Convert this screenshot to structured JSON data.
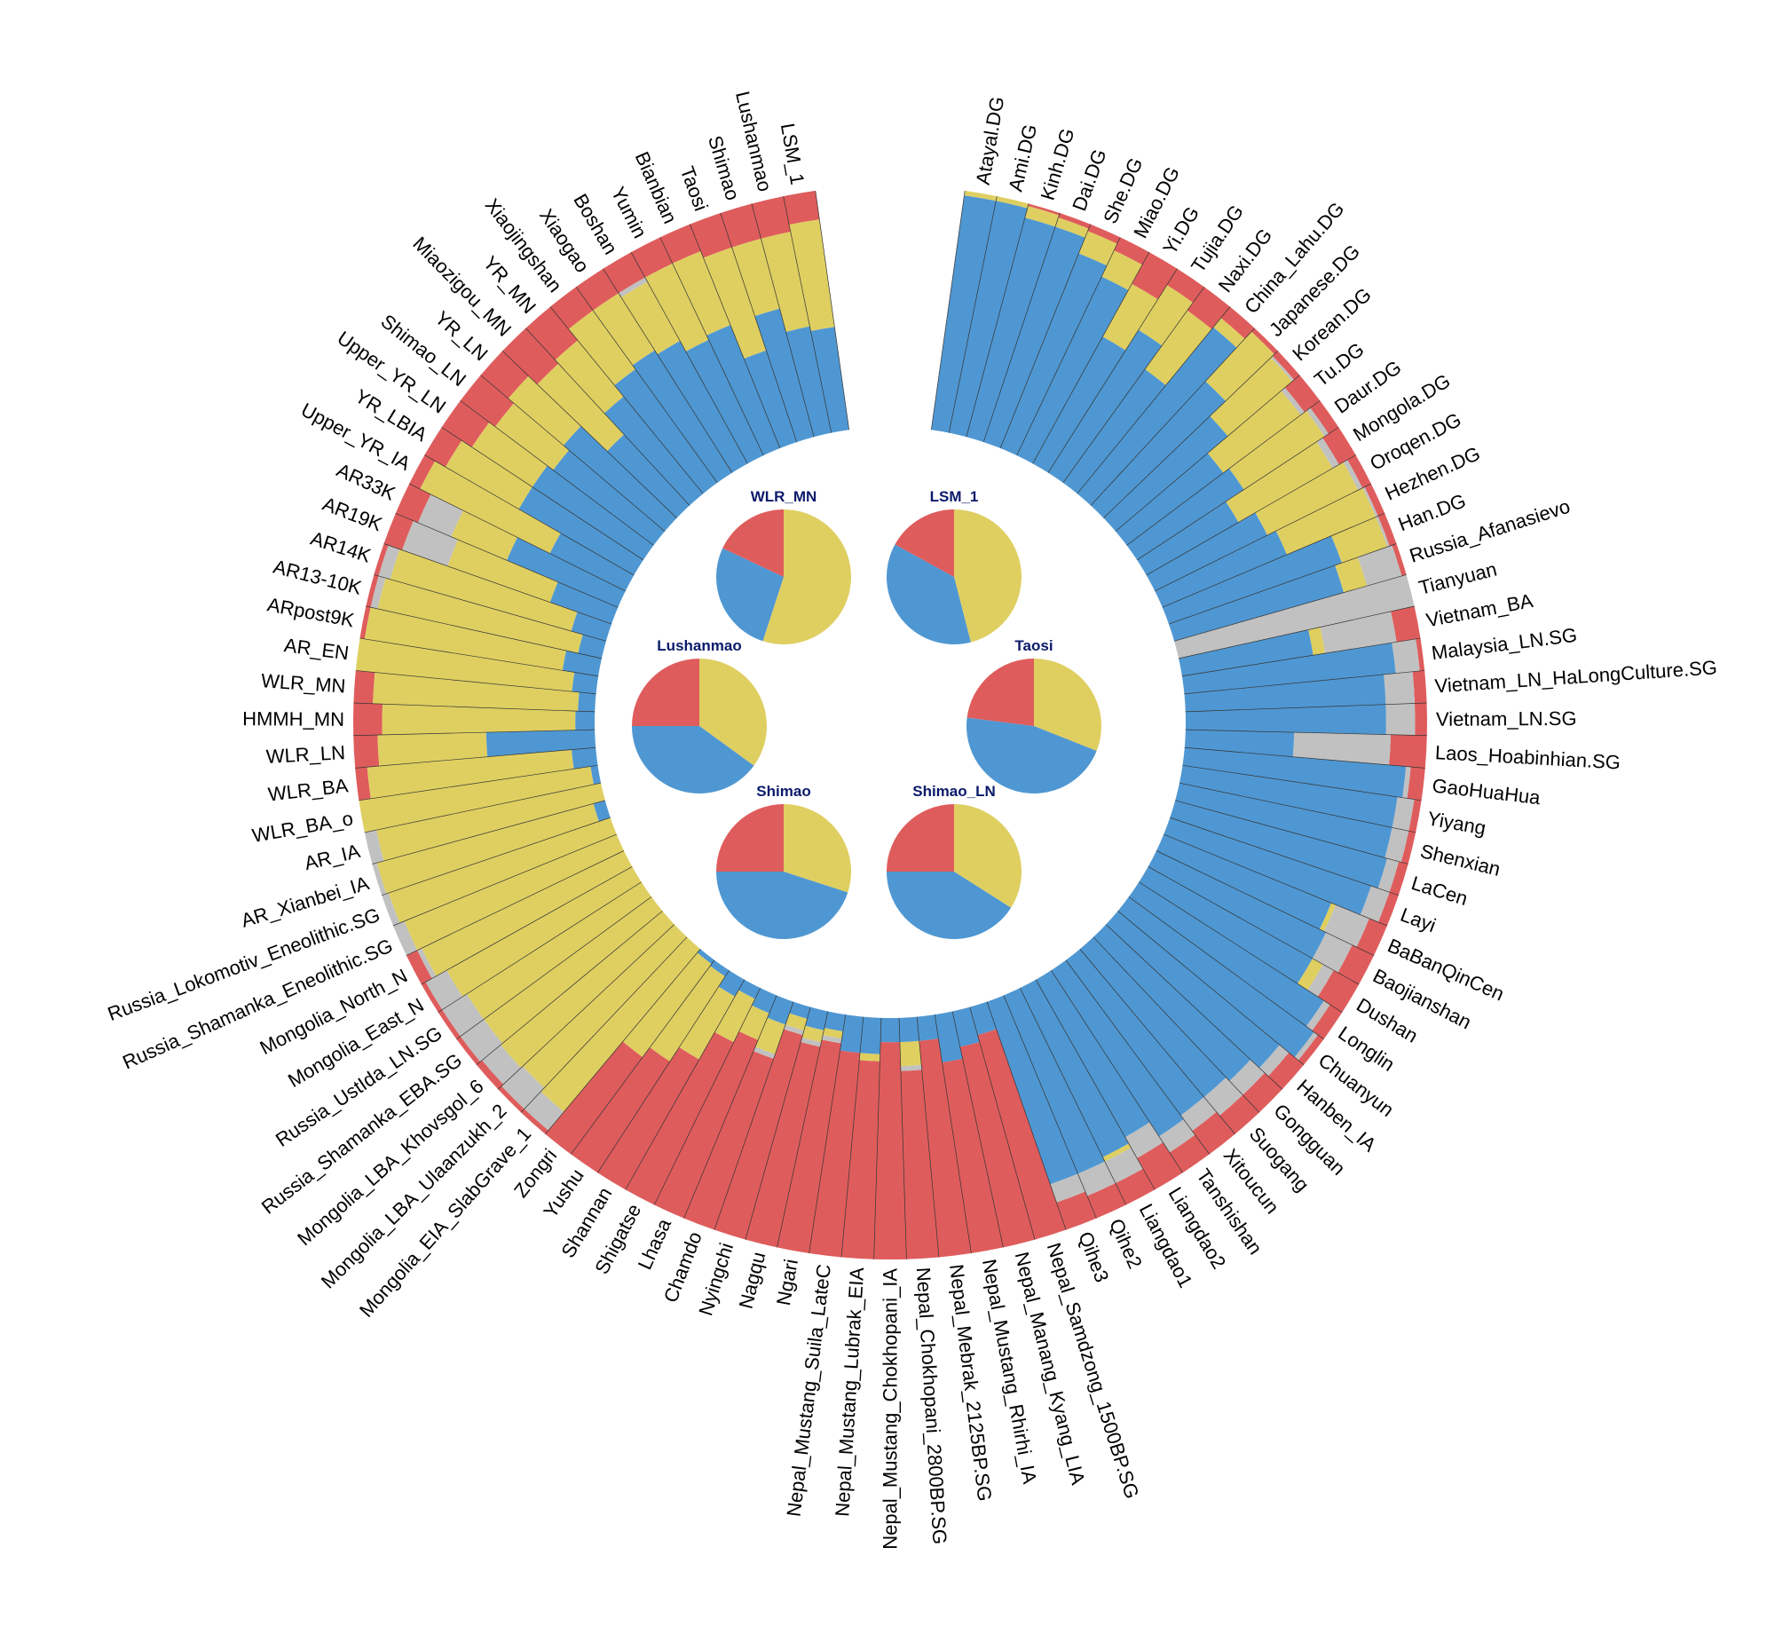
{
  "chart_data": [
    {
      "type": "circular-stacked-bar",
      "title": "",
      "legend": "none",
      "grid": false,
      "component_order": [
        "red",
        "gray",
        "yellow",
        "blue"
      ],
      "colors": {
        "red": "#df5c5c",
        "yellow": "#dfcf61",
        "blue": "#4f97d2",
        "gray": "#c1c1c1"
      },
      "groups": [
        {
          "label": "Atayal.DG",
          "red": 0.0,
          "gray": 0.0,
          "yellow": 0.02,
          "blue": 0.98
        },
        {
          "label": "Ami.DG",
          "red": 0.0,
          "gray": 0.0,
          "yellow": 0.02,
          "blue": 0.98
        },
        {
          "label": "Kinh.DG",
          "red": 0.01,
          "gray": 0.0,
          "yellow": 0.05,
          "blue": 0.94
        },
        {
          "label": "Dai.DG",
          "red": 0.02,
          "gray": 0.0,
          "yellow": 0.04,
          "blue": 0.94
        },
        {
          "label": "She.DG",
          "red": 0.03,
          "gray": 0.0,
          "yellow": 0.1,
          "blue": 0.87
        },
        {
          "label": "Miao.DG",
          "red": 0.06,
          "gray": 0.0,
          "yellow": 0.12,
          "blue": 0.82
        },
        {
          "label": "Yi.DG",
          "red": 0.15,
          "gray": 0.0,
          "yellow": 0.25,
          "blue": 0.6
        },
        {
          "label": "Tujia.DG",
          "red": 0.08,
          "gray": 0.0,
          "yellow": 0.22,
          "blue": 0.7
        },
        {
          "label": "Naxi.DG",
          "red": 0.12,
          "gray": 0.0,
          "yellow": 0.3,
          "blue": 0.58
        },
        {
          "label": "China_Lahu.DG",
          "red": 0.06,
          "gray": 0.0,
          "yellow": 0.05,
          "blue": 0.89
        },
        {
          "label": "Japanese.DG",
          "red": 0.02,
          "gray": 0.0,
          "yellow": 0.28,
          "blue": 0.7
        },
        {
          "label": "Korean.DG",
          "red": 0.03,
          "gray": 0.01,
          "yellow": 0.35,
          "blue": 0.61
        },
        {
          "label": "Tu.DG",
          "red": 0.08,
          "gray": 0.02,
          "yellow": 0.4,
          "blue": 0.5
        },
        {
          "label": "Daur.DG",
          "red": 0.05,
          "gray": 0.02,
          "yellow": 0.4,
          "blue": 0.53
        },
        {
          "label": "Mongola.DG",
          "red": 0.08,
          "gray": 0.03,
          "yellow": 0.45,
          "blue": 0.44
        },
        {
          "label": "Oroqen.DG",
          "red": 0.04,
          "gray": 0.02,
          "yellow": 0.42,
          "blue": 0.52
        },
        {
          "label": "Hezhen.DG",
          "red": 0.03,
          "gray": 0.01,
          "yellow": 0.4,
          "blue": 0.56
        },
        {
          "label": "Han.DG",
          "red": 0.03,
          "gray": 0.01,
          "yellow": 0.2,
          "blue": 0.76
        },
        {
          "label": "Russia_Afanasievo",
          "red": 0.02,
          "gray": 0.15,
          "yellow": 0.1,
          "blue": 0.73
        },
        {
          "label": "Tianyuan",
          "red": 0.0,
          "gray": 1.0,
          "yellow": 0.0,
          "blue": 0.0
        },
        {
          "label": "Vietnam_BA",
          "red": 0.1,
          "gray": 0.3,
          "yellow": 0.05,
          "blue": 0.55
        },
        {
          "label": "Malaysia_LN.SG",
          "red": 0.02,
          "gray": 0.1,
          "yellow": 0.0,
          "blue": 0.88
        },
        {
          "label": "Vietnam_LN_HaLongCulture.SG",
          "red": 0.05,
          "gray": 0.12,
          "yellow": 0.0,
          "blue": 0.83
        },
        {
          "label": "Vietnam_LN.SG",
          "red": 0.05,
          "gray": 0.12,
          "yellow": 0.0,
          "blue": 0.83
        },
        {
          "label": "Laos_Hoabinhian.SG",
          "red": 0.15,
          "gray": 0.4,
          "yellow": 0.0,
          "blue": 0.45
        },
        {
          "label": "GaoHuaHua",
          "red": 0.06,
          "gray": 0.02,
          "yellow": 0.0,
          "blue": 0.92
        },
        {
          "label": "Yiyang",
          "red": 0.03,
          "gray": 0.07,
          "yellow": 0.0,
          "blue": 0.9
        },
        {
          "label": "Shenxian",
          "red": 0.03,
          "gray": 0.07,
          "yellow": 0.0,
          "blue": 0.9
        },
        {
          "label": "LaCen",
          "red": 0.04,
          "gray": 0.05,
          "yellow": 0.0,
          "blue": 0.91
        },
        {
          "label": "Layi",
          "red": 0.04,
          "gray": 0.08,
          "yellow": 0.0,
          "blue": 0.88
        },
        {
          "label": "BaBanQinCen",
          "red": 0.08,
          "gray": 0.15,
          "yellow": 0.02,
          "blue": 0.75
        },
        {
          "label": "Baojianshan",
          "red": 0.1,
          "gray": 0.12,
          "yellow": 0.0,
          "blue": 0.78
        },
        {
          "label": "Dushan",
          "red": 0.12,
          "gray": 0.05,
          "yellow": 0.05,
          "blue": 0.78
        },
        {
          "label": "Longlin",
          "red": 0.06,
          "gray": 0.03,
          "yellow": 0.0,
          "blue": 0.91
        },
        {
          "label": "Chuanyun",
          "red": 0.03,
          "gray": 0.02,
          "yellow": 0.0,
          "blue": 0.95
        },
        {
          "label": "Hanben_IA",
          "red": 0.08,
          "gray": 0.05,
          "yellow": 0.0,
          "blue": 0.87
        },
        {
          "label": "Gongguan",
          "red": 0.1,
          "gray": 0.08,
          "yellow": 0.0,
          "blue": 0.82
        },
        {
          "label": "Suogang",
          "red": 0.1,
          "gray": 0.1,
          "yellow": 0.0,
          "blue": 0.8
        },
        {
          "label": "Xitoucun",
          "red": 0.12,
          "gray": 0.08,
          "yellow": 0.0,
          "blue": 0.8
        },
        {
          "label": "Tanshishan",
          "red": 0.1,
          "gray": 0.08,
          "yellow": 0.0,
          "blue": 0.82
        },
        {
          "label": "Liangdao2",
          "red": 0.15,
          "gray": 0.1,
          "yellow": 0.0,
          "blue": 0.75
        },
        {
          "label": "Liangdao1",
          "red": 0.1,
          "gray": 0.1,
          "yellow": 0.02,
          "blue": 0.78
        },
        {
          "label": "Qihe2",
          "red": 0.1,
          "gray": 0.1,
          "yellow": 0.0,
          "blue": 0.8
        },
        {
          "label": "Qihe3",
          "red": 0.12,
          "gray": 0.08,
          "yellow": 0.0,
          "blue": 0.8
        },
        {
          "label": "Nepal_Samdzong_1500BP.SG",
          "red": 0.88,
          "gray": 0.0,
          "yellow": 0.0,
          "blue": 0.12
        },
        {
          "label": "Nepal_Manang_Kyang_LIA",
          "red": 0.85,
          "gray": 0.0,
          "yellow": 0.0,
          "blue": 0.15
        },
        {
          "label": "Nepal_Mustang_Rhirhi_IA",
          "red": 0.8,
          "gray": 0.0,
          "yellow": 0.0,
          "blue": 0.2
        },
        {
          "label": "Nepal_Mebrak_2125BP.SG",
          "red": 0.9,
          "gray": 0.0,
          "yellow": 0.0,
          "blue": 0.1
        },
        {
          "label": "Nepal_Chokhopani_2800BP.SG",
          "red": 0.78,
          "gray": 0.02,
          "yellow": 0.1,
          "blue": 0.1
        },
        {
          "label": "Nepal_Mustang_Chokhopani_IA",
          "red": 0.9,
          "gray": 0.0,
          "yellow": 0.0,
          "blue": 0.1
        },
        {
          "label": "Nepal_Mustang_Lubrak_EIA",
          "red": 0.82,
          "gray": 0.0,
          "yellow": 0.03,
          "blue": 0.15
        },
        {
          "label": "Nepal_Mustang_Suila_LateC",
          "red": 0.85,
          "gray": 0.0,
          "yellow": 0.0,
          "blue": 0.15
        },
        {
          "label": "Ngari",
          "red": 0.88,
          "gray": 0.02,
          "yellow": 0.03,
          "blue": 0.07
        },
        {
          "label": "Nagqu",
          "red": 0.85,
          "gray": 0.02,
          "yellow": 0.05,
          "blue": 0.08
        },
        {
          "label": "Nyingchi",
          "red": 0.88,
          "gray": 0.02,
          "yellow": 0.05,
          "blue": 0.05
        },
        {
          "label": "Chamdo",
          "red": 0.75,
          "gray": 0.02,
          "yellow": 0.13,
          "blue": 0.1
        },
        {
          "label": "Lhasa",
          "red": 0.8,
          "gray": 0.0,
          "yellow": 0.12,
          "blue": 0.08
        },
        {
          "label": "Shigatse",
          "red": 0.75,
          "gray": 0.0,
          "yellow": 0.2,
          "blue": 0.05
        },
        {
          "label": "Shannan",
          "red": 0.62,
          "gray": 0.0,
          "yellow": 0.3,
          "blue": 0.08
        },
        {
          "label": "Yushu",
          "red": 0.55,
          "gray": 0.0,
          "yellow": 0.42,
          "blue": 0.03
        },
        {
          "label": "Zongri",
          "red": 0.5,
          "gray": 0.0,
          "yellow": 0.48,
          "blue": 0.02
        },
        {
          "label": "Mongolia_EIA_SlabGrave_1",
          "red": 0.02,
          "gray": 0.1,
          "yellow": 0.88,
          "blue": 0.0
        },
        {
          "label": "Mongolia_LBA_Ulaanzukh_2",
          "red": 0.02,
          "gray": 0.12,
          "yellow": 0.86,
          "blue": 0.0
        },
        {
          "label": "Mongolia_LBA_Khovsgol_6",
          "red": 0.03,
          "gray": 0.1,
          "yellow": 0.87,
          "blue": 0.0
        },
        {
          "label": "Russia_Shamanka_EBA.SG",
          "red": 0.02,
          "gray": 0.12,
          "yellow": 0.86,
          "blue": 0.0
        },
        {
          "label": "Russia_UstIda_LN.SG",
          "red": 0.02,
          "gray": 0.12,
          "yellow": 0.86,
          "blue": 0.0
        },
        {
          "label": "Mongolia_East_N",
          "red": 0.02,
          "gray": 0.1,
          "yellow": 0.88,
          "blue": 0.0
        },
        {
          "label": "Mongolia_North_N",
          "red": 0.05,
          "gray": 0.02,
          "yellow": 0.93,
          "blue": 0.0
        },
        {
          "label": "Russia_Shamanka_Eneolithic.SG",
          "red": 0.0,
          "gray": 0.05,
          "yellow": 0.95,
          "blue": 0.0
        },
        {
          "label": "Russia_Lokomotiv_Eneolithic.SG",
          "red": 0.0,
          "gray": 0.03,
          "yellow": 0.97,
          "blue": 0.0
        },
        {
          "label": "AR_Xianbei_IA",
          "red": 0.0,
          "gray": 0.02,
          "yellow": 0.93,
          "blue": 0.05
        },
        {
          "label": "AR_IA",
          "red": 0.0,
          "gray": 0.05,
          "yellow": 0.95,
          "blue": 0.0
        },
        {
          "label": "WLR_BA_o",
          "red": 0.0,
          "gray": 0.0,
          "yellow": 0.97,
          "blue": 0.03
        },
        {
          "label": "WLR_BA",
          "red": 0.05,
          "gray": 0.0,
          "yellow": 0.85,
          "blue": 0.1
        },
        {
          "label": "WLR_LN",
          "red": 0.1,
          "gray": 0.0,
          "yellow": 0.45,
          "blue": 0.45
        },
        {
          "label": "HMMH_MN",
          "red": 0.12,
          "gray": 0.0,
          "yellow": 0.8,
          "blue": 0.08
        },
        {
          "label": "WLR_MN",
          "red": 0.08,
          "gray": 0.0,
          "yellow": 0.85,
          "blue": 0.07
        },
        {
          "label": "AR_EN",
          "red": 0.0,
          "gray": 0.0,
          "yellow": 0.9,
          "blue": 0.1
        },
        {
          "label": "ARpost9K",
          "red": 0.02,
          "gray": 0.0,
          "yellow": 0.83,
          "blue": 0.15
        },
        {
          "label": "AR13-10K",
          "red": 0.02,
          "gray": 0.03,
          "yellow": 0.85,
          "blue": 0.1
        },
        {
          "label": "AR14K",
          "red": 0.02,
          "gray": 0.05,
          "yellow": 0.78,
          "blue": 0.15
        },
        {
          "label": "AR19K",
          "red": 0.08,
          "gray": 0.2,
          "yellow": 0.45,
          "blue": 0.27
        },
        {
          "label": "AR33K",
          "red": 0.1,
          "gray": 0.15,
          "yellow": 0.25,
          "blue": 0.5
        },
        {
          "label": "Upper_YR_IA",
          "red": 0.05,
          "gray": 0.0,
          "yellow": 0.6,
          "blue": 0.35
        },
        {
          "label": "YR_LBIA",
          "red": 0.1,
          "gray": 0.0,
          "yellow": 0.35,
          "blue": 0.55
        },
        {
          "label": "Upper_YR_LN",
          "red": 0.15,
          "gray": 0.0,
          "yellow": 0.3,
          "blue": 0.55
        },
        {
          "label": "Shimao_LN",
          "red": 0.18,
          "gray": 0.0,
          "yellow": 0.3,
          "blue": 0.52
        },
        {
          "label": "YR_LN",
          "red": 0.15,
          "gray": 0.0,
          "yellow": 0.3,
          "blue": 0.55
        },
        {
          "label": "Miaozigou_MN",
          "red": 0.2,
          "gray": 0.0,
          "yellow": 0.4,
          "blue": 0.4
        },
        {
          "label": "YR_MN",
          "red": 0.18,
          "gray": 0.0,
          "yellow": 0.3,
          "blue": 0.52
        },
        {
          "label": "Xiaojingshan",
          "red": 0.12,
          "gray": 0.0,
          "yellow": 0.3,
          "blue": 0.58
        },
        {
          "label": "Xiaogao",
          "red": 0.12,
          "gray": 0.0,
          "yellow": 0.28,
          "blue": 0.6
        },
        {
          "label": "Boshan",
          "red": 0.12,
          "gray": 0.02,
          "yellow": 0.28,
          "blue": 0.58
        },
        {
          "label": "Yumin",
          "red": 0.12,
          "gray": 0.0,
          "yellow": 0.35,
          "blue": 0.53
        },
        {
          "label": "Bianbian",
          "red": 0.12,
          "gray": 0.0,
          "yellow": 0.33,
          "blue": 0.55
        },
        {
          "label": "Taosi",
          "red": 0.15,
          "gray": 0.0,
          "yellow": 0.45,
          "blue": 0.4
        },
        {
          "label": "Shimao",
          "red": 0.15,
          "gray": 0.0,
          "yellow": 0.3,
          "blue": 0.55
        },
        {
          "label": "Lushanmao",
          "red": 0.15,
          "gray": 0.0,
          "yellow": 0.4,
          "blue": 0.45
        },
        {
          "label": "LSM_1",
          "red": 0.12,
          "gray": 0.0,
          "yellow": 0.45,
          "blue": 0.43
        }
      ]
    },
    {
      "type": "pie",
      "title": "WLR_MN",
      "slices": [
        {
          "name": "yellow",
          "value": 0.55
        },
        {
          "name": "blue",
          "value": 0.27
        },
        {
          "name": "red",
          "value": 0.18
        }
      ]
    },
    {
      "type": "pie",
      "title": "LSM_1",
      "slices": [
        {
          "name": "yellow",
          "value": 0.46
        },
        {
          "name": "blue",
          "value": 0.37
        },
        {
          "name": "red",
          "value": 0.17
        }
      ]
    },
    {
      "type": "pie",
      "title": "Lushanmao",
      "slices": [
        {
          "name": "yellow",
          "value": 0.35
        },
        {
          "name": "blue",
          "value": 0.4
        },
        {
          "name": "red",
          "value": 0.25
        }
      ]
    },
    {
      "type": "pie",
      "title": "Taosi",
      "slices": [
        {
          "name": "yellow",
          "value": 0.31
        },
        {
          "name": "blue",
          "value": 0.46
        },
        {
          "name": "red",
          "value": 0.23
        }
      ]
    },
    {
      "type": "pie",
      "title": "Shimao",
      "slices": [
        {
          "name": "yellow",
          "value": 0.3
        },
        {
          "name": "blue",
          "value": 0.45
        },
        {
          "name": "red",
          "value": 0.25
        }
      ]
    },
    {
      "type": "pie",
      "title": "Shimao_LN",
      "slices": [
        {
          "name": "yellow",
          "value": 0.34
        },
        {
          "name": "blue",
          "value": 0.41
        },
        {
          "name": "red",
          "value": 0.25
        }
      ]
    }
  ]
}
